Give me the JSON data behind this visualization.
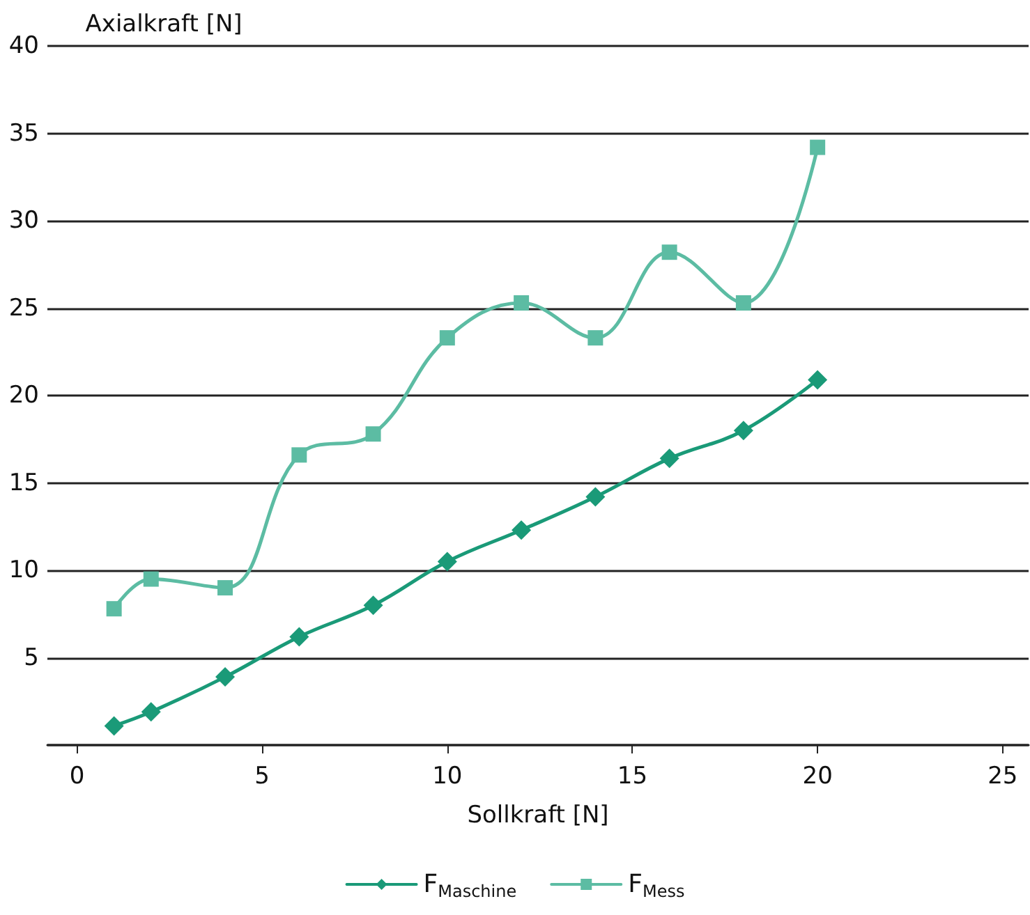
{
  "chart_data": {
    "type": "line",
    "xlabel": "Sollkraft [N]",
    "ylabel": "Axialkraft [N]",
    "xlim": [
      -0.8,
      25.7
    ],
    "xticks": [
      0,
      5,
      10,
      15,
      20,
      25
    ],
    "ylim": [
      0,
      40
    ],
    "yticks": [
      {
        "value": 0,
        "label": null
      },
      5,
      10,
      15,
      20,
      25,
      30,
      35,
      40
    ],
    "grid": "y",
    "legend": "bottom",
    "line_style": "solid",
    "series": [
      {
        "name": "F$_{Maschine}$",
        "color": "#1a9a78",
        "marker": "diamond",
        "x": [
          1,
          2,
          4,
          6,
          8,
          10,
          12,
          14,
          16,
          18,
          20
        ],
        "values": [
          1.1,
          1.9,
          3.9,
          6.2,
          8.0,
          10.5,
          12.3,
          14.2,
          16.4,
          18.0,
          20.9
        ]
      },
      {
        "name": "F$_{Mess}$",
        "color": "#5cbca3",
        "marker": "square",
        "x": [
          1,
          2,
          4,
          6,
          8,
          10,
          12,
          14,
          16,
          18,
          20
        ],
        "values": [
          7.8,
          9.5,
          9.0,
          16.6,
          17.8,
          23.3,
          25.3,
          23.3,
          28.2,
          25.3,
          34.2
        ]
      }
    ]
  }
}
